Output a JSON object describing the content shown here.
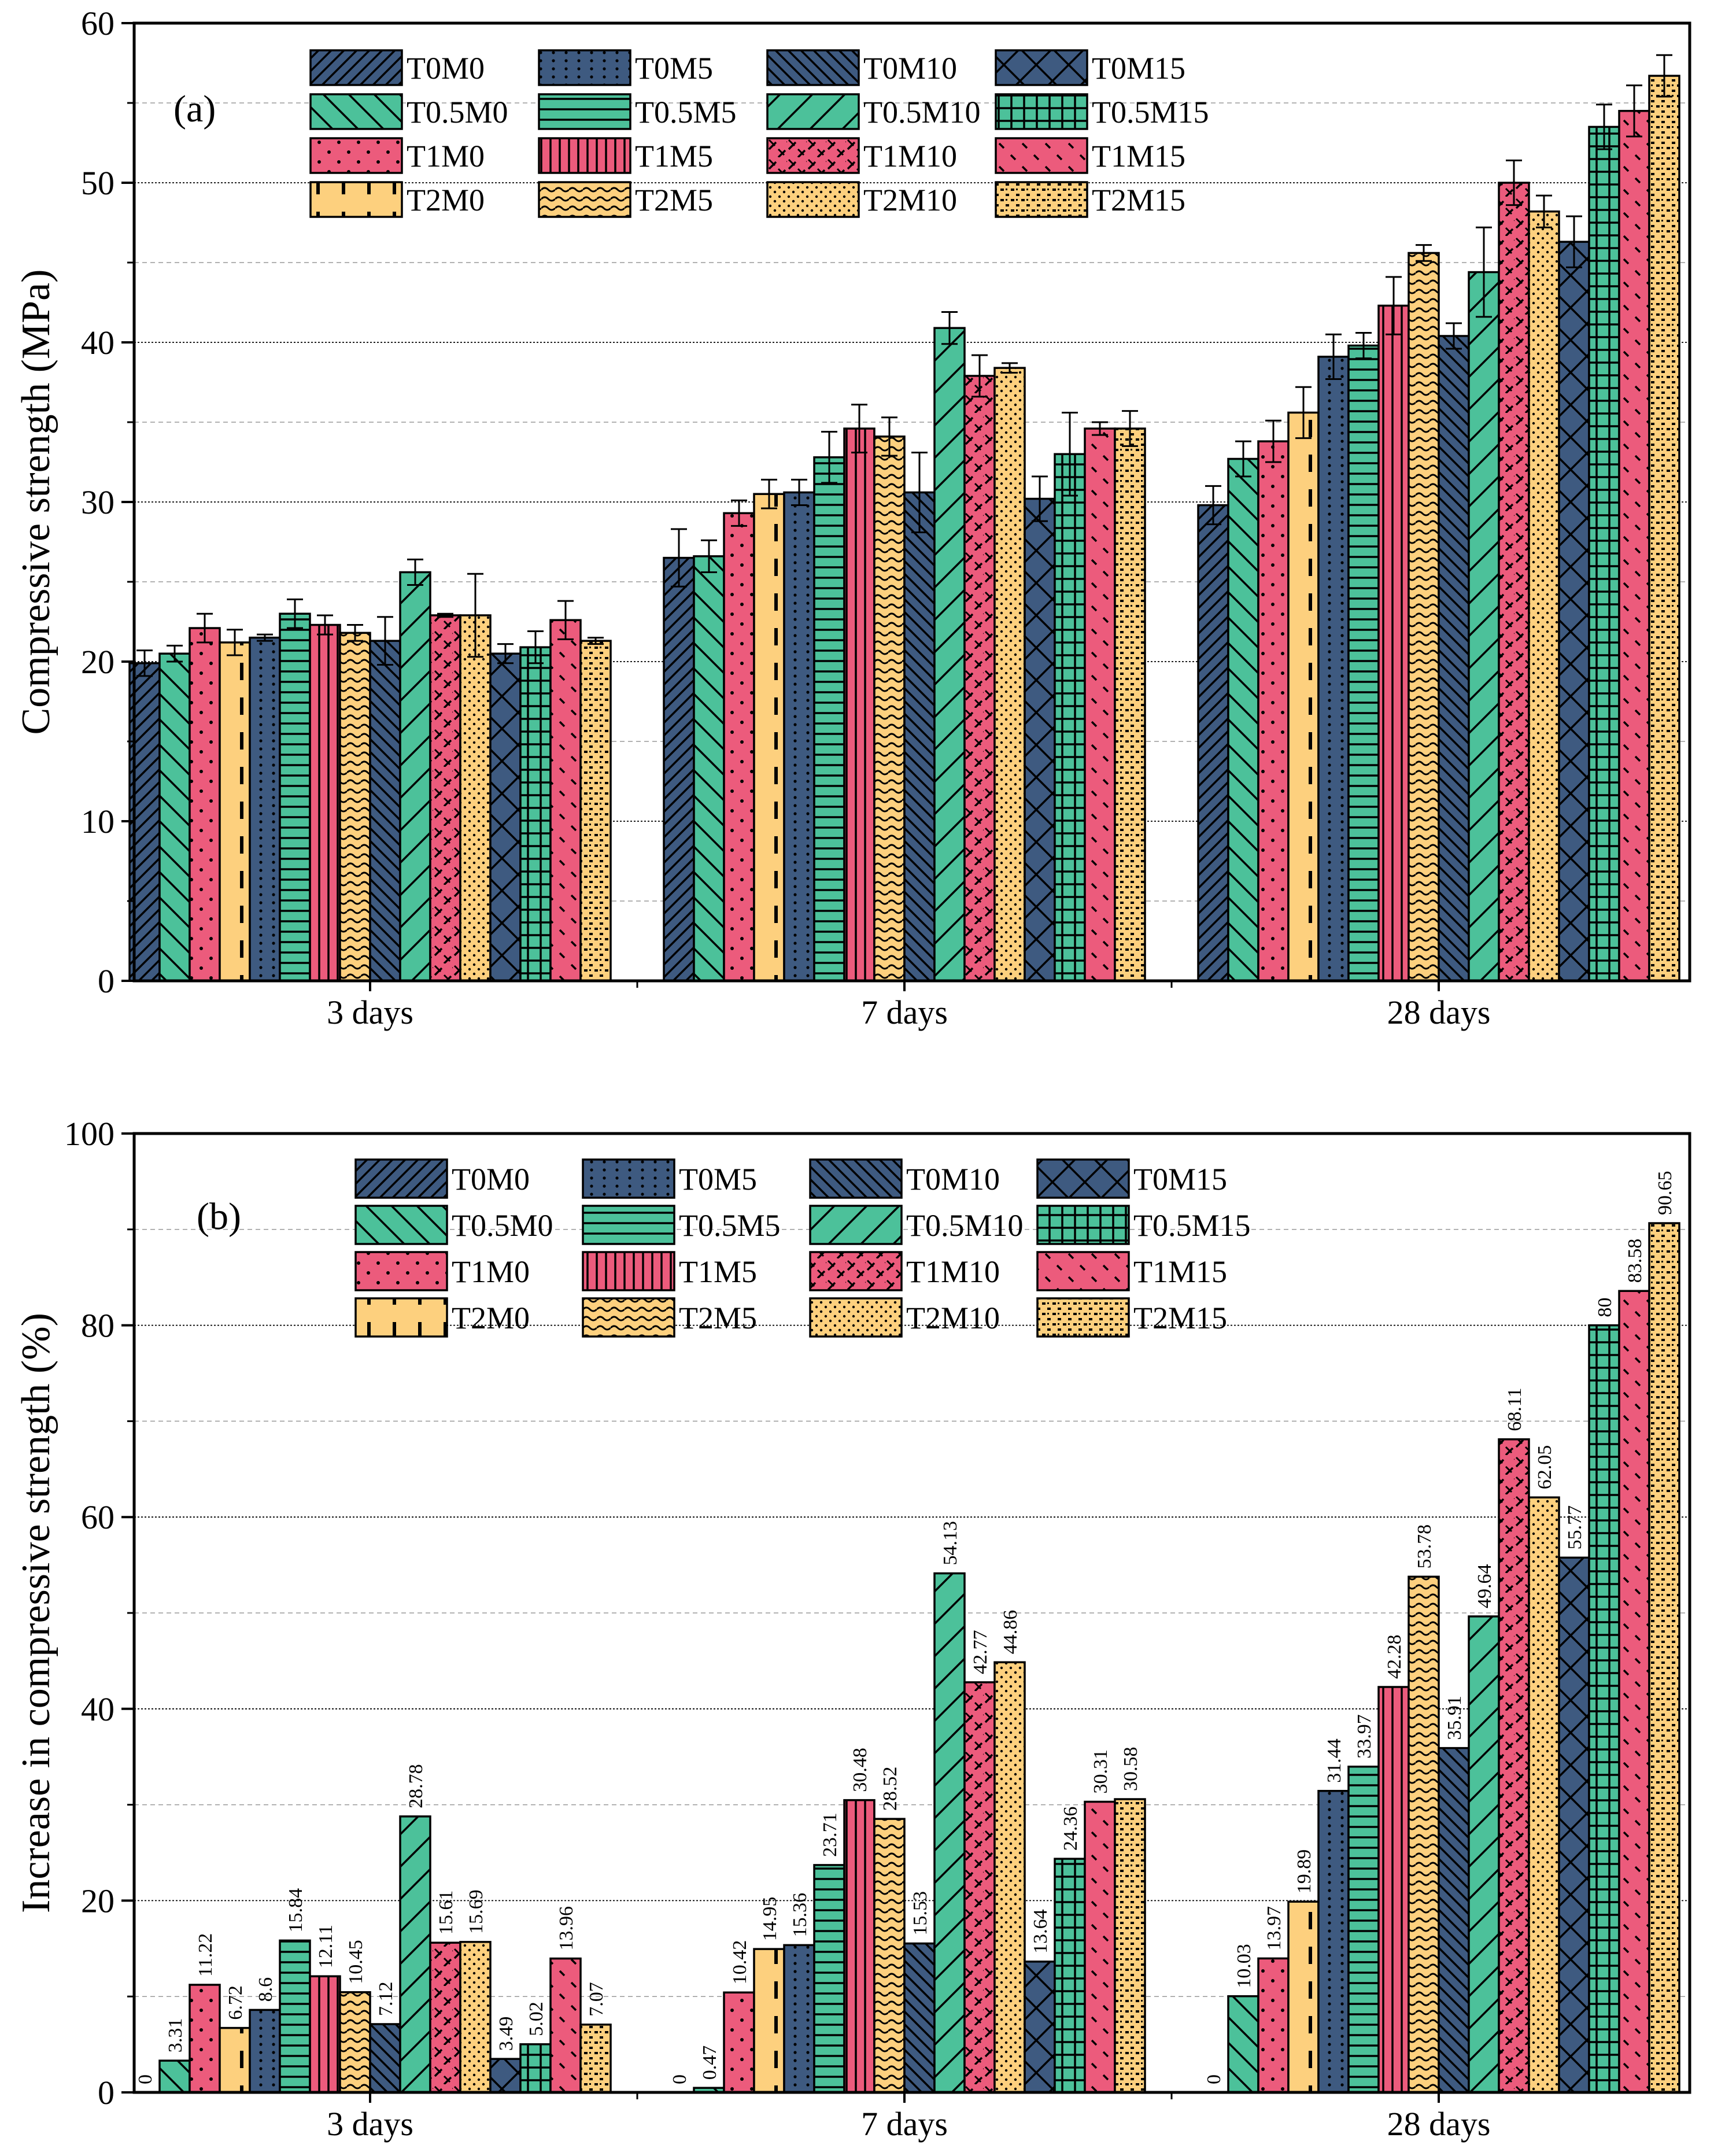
{
  "colors": {
    "T0": "#3e5a80",
    "T0.5": "#4cc19a",
    "T1": "#ec5b7c",
    "T2": "#fdd07e"
  },
  "chart_data": [
    {
      "type": "bar",
      "panel_label": "(a)",
      "title": "",
      "xlabel": "",
      "ylabel": "Compressive strength (MPa)",
      "ylim": [
        0,
        60
      ],
      "yticks": [
        "0",
        "10",
        "20",
        "30",
        "40",
        "50",
        "60"
      ],
      "grid": true,
      "legend_position": "top",
      "categories": [
        "3 days",
        "7 days",
        "28 days"
      ],
      "series": [
        {
          "name": "T0M0",
          "pattern": "diag-fwd",
          "group": "T0",
          "values": [
            19.9,
            26.5,
            29.8
          ],
          "errors": [
            0.8,
            1.8,
            1.2
          ]
        },
        {
          "name": "T0.5M0",
          "pattern": "diag-back",
          "group": "T0.5",
          "values": [
            20.5,
            26.6,
            32.7
          ],
          "errors": [
            0.5,
            1.0,
            1.1
          ]
        },
        {
          "name": "T1M0",
          "pattern": "dots-sparse",
          "group": "T1",
          "values": [
            22.1,
            29.3,
            33.8
          ],
          "errors": [
            0.9,
            0.8,
            1.3
          ]
        },
        {
          "name": "T2M0",
          "pattern": "dash-vertical",
          "group": "T2",
          "values": [
            21.2,
            30.5,
            35.6
          ],
          "errors": [
            0.8,
            0.9,
            1.6
          ]
        },
        {
          "name": "T0M5",
          "pattern": "dotted-vertical",
          "group": "T0",
          "values": [
            21.5,
            30.6,
            39.1
          ],
          "errors": [
            0.2,
            0.8,
            1.4
          ]
        },
        {
          "name": "T0.5M5",
          "pattern": "horizontal",
          "group": "T0.5",
          "values": [
            23.0,
            32.8,
            39.8
          ],
          "errors": [
            0.9,
            1.6,
            0.8
          ]
        },
        {
          "name": "T1M5",
          "pattern": "vertical",
          "group": "T1",
          "values": [
            22.3,
            34.6,
            42.3
          ],
          "errors": [
            0.6,
            1.5,
            1.8
          ]
        },
        {
          "name": "T2M5",
          "pattern": "waves",
          "group": "T2",
          "values": [
            21.8,
            34.1,
            45.6
          ],
          "errors": [
            0.5,
            1.2,
            0.5
          ]
        },
        {
          "name": "T0M10",
          "pattern": "diag-back-dense",
          "group": "T0",
          "values": [
            21.3,
            30.6,
            40.4
          ],
          "errors": [
            1.5,
            2.5,
            0.8
          ]
        },
        {
          "name": "T0.5M10",
          "pattern": "diag-fwd-sparse",
          "group": "T0.5",
          "values": [
            25.6,
            40.9,
            44.4
          ],
          "errors": [
            0.8,
            1.0,
            2.8
          ]
        },
        {
          "name": "T1M10",
          "pattern": "dash-diag",
          "group": "T1",
          "values": [
            22.9,
            37.9,
            50.0
          ],
          "errors": [
            0.1,
            1.3,
            1.4
          ]
        },
        {
          "name": "T2M10",
          "pattern": "dots-dense",
          "group": "T2",
          "values": [
            22.9,
            38.4,
            48.2
          ],
          "errors": [
            2.6,
            0.3,
            1.0
          ]
        },
        {
          "name": "T0M15",
          "pattern": "cross",
          "group": "T0",
          "values": [
            20.5,
            30.2,
            46.3
          ],
          "errors": [
            0.6,
            1.4,
            1.6
          ]
        },
        {
          "name": "T0.5M15",
          "pattern": "grid",
          "group": "T0.5",
          "values": [
            20.9,
            33.0,
            53.5
          ],
          "errors": [
            1.0,
            2.6,
            1.4
          ]
        },
        {
          "name": "T1M15",
          "pattern": "dash-diag-sparse",
          "group": "T1",
          "values": [
            22.6,
            34.6,
            54.5
          ],
          "errors": [
            1.2,
            0.4,
            1.6
          ]
        },
        {
          "name": "T2M15",
          "pattern": "bricks",
          "group": "T2",
          "values": [
            21.3,
            34.6,
            56.7
          ],
          "errors": [
            0.2,
            1.1,
            1.3
          ]
        }
      ]
    },
    {
      "type": "bar",
      "panel_label": "(b)",
      "title": "",
      "xlabel": "",
      "ylabel": "Increase in compressive strength (%)",
      "ylim": [
        0,
        100
      ],
      "yticks": [
        "0",
        "20",
        "40",
        "60",
        "80",
        "100"
      ],
      "grid": true,
      "legend_position": "top",
      "categories": [
        "3 days",
        "7 days",
        "28 days"
      ],
      "series": [
        {
          "name": "T0M0",
          "pattern": "diag-fwd",
          "group": "T0",
          "values": [
            0,
            0,
            0
          ],
          "labels": [
            "0",
            "0",
            "0"
          ]
        },
        {
          "name": "T0.5M0",
          "pattern": "diag-back",
          "group": "T0.5",
          "values": [
            3.31,
            0.47,
            10.03
          ],
          "labels": [
            "3.31",
            "0.47",
            "10.03"
          ]
        },
        {
          "name": "T1M0",
          "pattern": "dots-sparse",
          "group": "T1",
          "values": [
            11.22,
            10.42,
            13.97
          ],
          "labels": [
            "11.22",
            "10.42",
            "13.97"
          ]
        },
        {
          "name": "T2M0",
          "pattern": "dash-vertical",
          "group": "T2",
          "values": [
            6.72,
            14.95,
            19.89
          ],
          "labels": [
            "6.72",
            "14.95",
            "19.89"
          ]
        },
        {
          "name": "T0M5",
          "pattern": "dotted-vertical",
          "group": "T0",
          "values": [
            8.6,
            15.36,
            31.44
          ],
          "labels": [
            "8.6",
            "15.36",
            "31.44"
          ]
        },
        {
          "name": "T0.5M5",
          "pattern": "horizontal",
          "group": "T0.5",
          "values": [
            15.84,
            23.71,
            33.97
          ],
          "labels": [
            "15.84",
            "23.71",
            "33.97"
          ]
        },
        {
          "name": "T1M5",
          "pattern": "vertical",
          "group": "T1",
          "values": [
            12.11,
            30.48,
            42.28
          ],
          "labels": [
            "12.11",
            "30.48",
            "42.28"
          ]
        },
        {
          "name": "T2M5",
          "pattern": "waves",
          "group": "T2",
          "values": [
            10.45,
            28.52,
            53.78
          ],
          "labels": [
            "10.45",
            "28.52",
            "53.78"
          ]
        },
        {
          "name": "T0M10",
          "pattern": "diag-back-dense",
          "group": "T0",
          "values": [
            7.12,
            15.53,
            35.91
          ],
          "labels": [
            "7.12",
            "15.53",
            "35.91"
          ]
        },
        {
          "name": "T0.5M10",
          "pattern": "diag-fwd-sparse",
          "group": "T0.5",
          "values": [
            28.78,
            54.13,
            49.64
          ],
          "labels": [
            "28.78",
            "54.13",
            "49.64"
          ]
        },
        {
          "name": "T1M10",
          "pattern": "dash-diag",
          "group": "T1",
          "values": [
            15.61,
            42.77,
            68.11
          ],
          "labels": [
            "15.61",
            "42.77",
            "68.11"
          ]
        },
        {
          "name": "T2M10",
          "pattern": "dots-dense",
          "group": "T2",
          "values": [
            15.69,
            44.86,
            62.05
          ],
          "labels": [
            "15.69",
            "44.86",
            "62.05"
          ]
        },
        {
          "name": "T0M15",
          "pattern": "cross",
          "group": "T0",
          "values": [
            3.49,
            13.64,
            55.77
          ],
          "labels": [
            "3.49",
            "13.64",
            "55.77"
          ]
        },
        {
          "name": "T0.5M15",
          "pattern": "grid",
          "group": "T0.5",
          "values": [
            5.02,
            24.36,
            80
          ],
          "labels": [
            "5.02",
            "24.36",
            "80"
          ]
        },
        {
          "name": "T1M15",
          "pattern": "dash-diag-sparse",
          "group": "T1",
          "values": [
            13.96,
            30.31,
            83.58
          ],
          "labels": [
            "13.96",
            "30.31",
            "83.58"
          ]
        },
        {
          "name": "T2M15",
          "pattern": "bricks",
          "group": "T2",
          "values": [
            7.07,
            30.58,
            90.65
          ],
          "labels": [
            "7.07",
            "30.58",
            "90.65"
          ]
        }
      ]
    }
  ]
}
